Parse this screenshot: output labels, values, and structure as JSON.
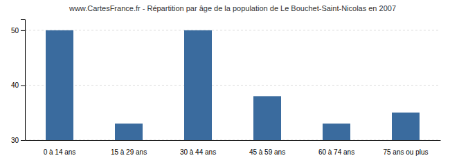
{
  "chart_data": {
    "type": "bar",
    "title": "www.CartesFrance.fr - Répartition par âge de la population de Le Bouchet-Saint-Nicolas en 2007",
    "categories": [
      "0 à 14 ans",
      "15 à 29 ans",
      "30 à 44 ans",
      "45 à 59 ans",
      "60 à 74 ans",
      "75 ans ou plus"
    ],
    "values": [
      50,
      33,
      50,
      38,
      33,
      35
    ],
    "color": "#3a6b9e",
    "ylim": [
      30,
      52
    ],
    "yticks": [
      30,
      40,
      50
    ],
    "grid": true
  }
}
